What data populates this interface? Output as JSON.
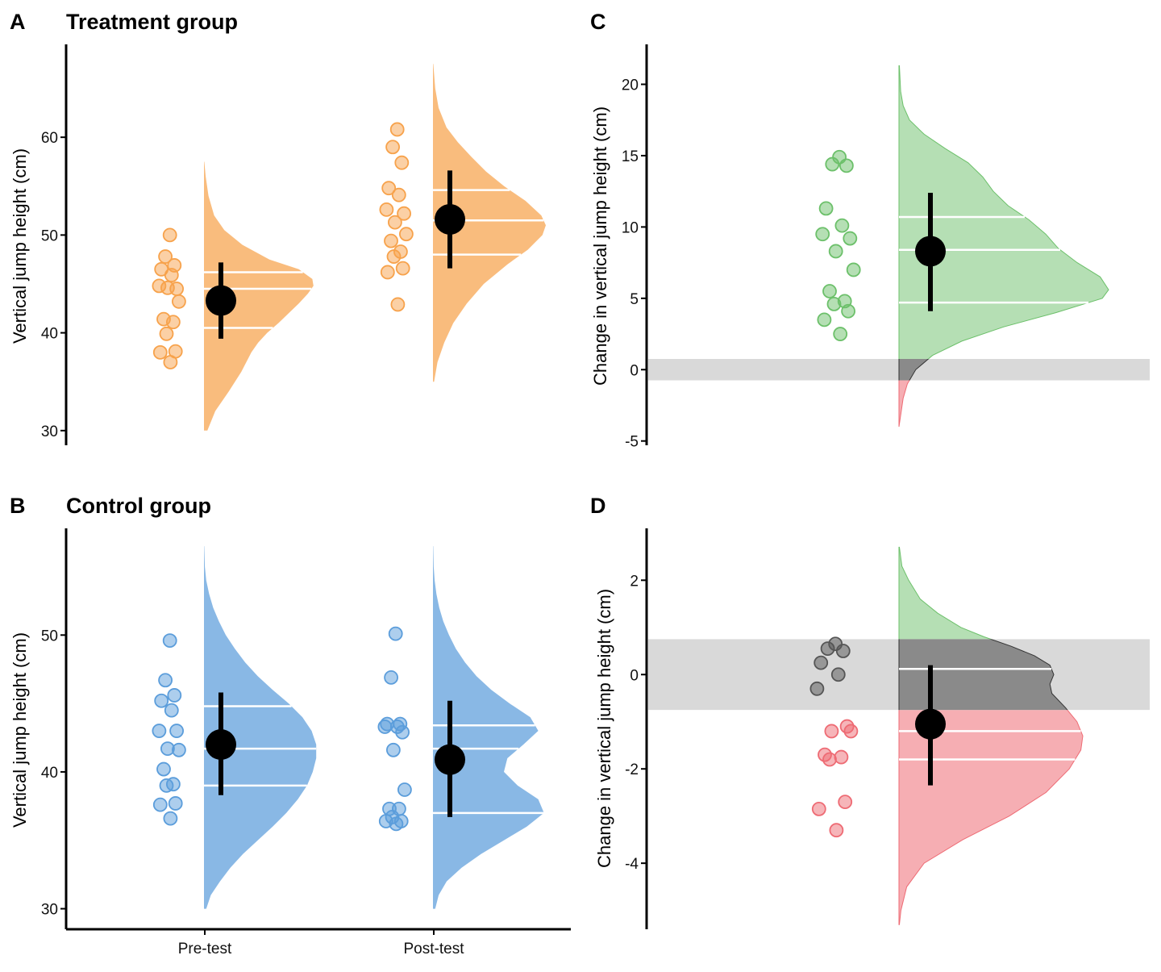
{
  "panels": {
    "A": {
      "letter": "A",
      "title": "Treatment group",
      "ylabel": "Vertical jump height (cm)"
    },
    "B": {
      "letter": "B",
      "title": "Control group",
      "ylabel": "Vertical jump height (cm)"
    },
    "C": {
      "letter": "C",
      "title": "",
      "ylabel": "Change in vertical jump height (cm)"
    },
    "D": {
      "letter": "D",
      "title": "",
      "ylabel": "Change in vertical jump height (cm)"
    }
  },
  "colors": {
    "treatment": "#f7a24b",
    "control": "#5b9ddb",
    "increase": "#6cc06a",
    "decrease": "#ee6b74",
    "equivalence": "#d9d9d9",
    "neutral": "#555555",
    "summary": "#000000"
  },
  "chart_data": [
    {
      "id": "A",
      "type": "raincloud",
      "title": "Treatment group",
      "xlabel": "",
      "ylabel": "Vertical jump height (cm)",
      "ylim": [
        28.5,
        69.5
      ],
      "yticks": [
        30,
        40,
        50,
        60
      ],
      "categories": [
        "Pre-test",
        "Post-test"
      ],
      "show_x_axis": false,
      "series": [
        {
          "category": "Pre-test",
          "points": [
            50.0,
            47.8,
            46.9,
            46.5,
            45.9,
            44.8,
            44.5,
            44.6,
            43.2,
            41.4,
            41.1,
            39.9,
            38.1,
            38.0,
            37.0
          ],
          "mean": 43.3,
          "ci": [
            39.4,
            47.2
          ],
          "quantiles": [
            40.5,
            44.5,
            46.2
          ],
          "density_range": [
            30,
            57.5
          ],
          "density": [
            [
              30,
              0.03
            ],
            [
              32,
              0.1
            ],
            [
              34,
              0.22
            ],
            [
              36,
              0.33
            ],
            [
              38,
              0.42
            ],
            [
              39,
              0.48
            ],
            [
              40,
              0.56
            ],
            [
              41,
              0.66
            ],
            [
              42,
              0.75
            ],
            [
              43,
              0.84
            ],
            [
              44,
              0.92
            ],
            [
              44.8,
              0.97
            ],
            [
              45.5,
              0.96
            ],
            [
              46.5,
              0.84
            ],
            [
              47.5,
              0.58
            ],
            [
              49,
              0.34
            ],
            [
              50.5,
              0.18
            ],
            [
              52,
              0.09
            ],
            [
              54,
              0.04
            ],
            [
              56,
              0.015
            ],
            [
              57.5,
              0.003
            ]
          ]
        },
        {
          "category": "Post-test",
          "points": [
            60.8,
            59.0,
            57.4,
            54.8,
            54.1,
            52.6,
            52.2,
            51.3,
            50.1,
            49.4,
            48.3,
            47.8,
            46.6,
            46.2,
            42.9
          ],
          "mean": 51.6,
          "ci": [
            46.6,
            56.6
          ],
          "quantiles": [
            48.0,
            51.5,
            54.6
          ],
          "density_range": [
            35,
            67.5
          ],
          "density": [
            [
              35,
              0.01
            ],
            [
              37,
              0.04
            ],
            [
              39,
              0.1
            ],
            [
              41,
              0.18
            ],
            [
              43,
              0.3
            ],
            [
              45,
              0.45
            ],
            [
              47,
              0.66
            ],
            [
              48.5,
              0.84
            ],
            [
              50,
              0.97
            ],
            [
              51,
              1.0
            ],
            [
              52,
              0.96
            ],
            [
              53.5,
              0.82
            ],
            [
              55,
              0.63
            ],
            [
              56.5,
              0.47
            ],
            [
              58,
              0.34
            ],
            [
              59.5,
              0.22
            ],
            [
              61,
              0.12
            ],
            [
              63,
              0.05
            ],
            [
              65,
              0.02
            ],
            [
              67.5,
              0.003
            ]
          ]
        }
      ]
    },
    {
      "id": "B",
      "type": "raincloud",
      "title": "Control group",
      "xlabel": "",
      "ylabel": "Vertical jump height (cm)",
      "ylim": [
        28.5,
        57.8
      ],
      "yticks": [
        30,
        40,
        50
      ],
      "categories": [
        "Pre-test",
        "Post-test"
      ],
      "show_x_axis": true,
      "series": [
        {
          "category": "Pre-test",
          "points": [
            49.6,
            46.7,
            45.6,
            45.2,
            44.5,
            43.0,
            43.0,
            41.7,
            41.6,
            40.2,
            39.1,
            39.0,
            37.7,
            37.6,
            36.6
          ],
          "mean": 42.0,
          "ci": [
            38.3,
            45.8
          ],
          "quantiles": [
            39.0,
            41.7,
            44.8
          ],
          "density_range": [
            30,
            56.5
          ],
          "density": [
            [
              30,
              0.02
            ],
            [
              31,
              0.06
            ],
            [
              32,
              0.14
            ],
            [
              33,
              0.23
            ],
            [
              34,
              0.34
            ],
            [
              35,
              0.47
            ],
            [
              36,
              0.6
            ],
            [
              37,
              0.72
            ],
            [
              38,
              0.82
            ],
            [
              39,
              0.9
            ],
            [
              40,
              0.95
            ],
            [
              41,
              0.98
            ],
            [
              42,
              0.98
            ],
            [
              43,
              0.94
            ],
            [
              44,
              0.86
            ],
            [
              45,
              0.74
            ],
            [
              46,
              0.6
            ],
            [
              47,
              0.47
            ],
            [
              48,
              0.36
            ],
            [
              49,
              0.27
            ],
            [
              50,
              0.19
            ],
            [
              51,
              0.13
            ],
            [
              52,
              0.08
            ],
            [
              53,
              0.045
            ],
            [
              54,
              0.02
            ],
            [
              55,
              0.008
            ],
            [
              56.5,
              0.002
            ]
          ]
        },
        {
          "category": "Post-test",
          "points": [
            50.1,
            46.9,
            43.5,
            43.5,
            43.3,
            43.3,
            42.9,
            41.6,
            38.7,
            37.3,
            37.3,
            36.7,
            36.4,
            36.4,
            36.2
          ],
          "mean": 40.9,
          "ci": [
            36.7,
            45.2
          ],
          "quantiles": [
            37.0,
            41.7,
            43.4
          ],
          "density_range": [
            30,
            56.5
          ],
          "density": [
            [
              30,
              0.02
            ],
            [
              31,
              0.05
            ],
            [
              32,
              0.12
            ],
            [
              33,
              0.25
            ],
            [
              34,
              0.42
            ],
            [
              35,
              0.62
            ],
            [
              36,
              0.82
            ],
            [
              37,
              0.97
            ],
            [
              38,
              0.92
            ],
            [
              39,
              0.74
            ],
            [
              40,
              0.62
            ],
            [
              41,
              0.65
            ],
            [
              42,
              0.79
            ],
            [
              43,
              0.92
            ],
            [
              44,
              0.85
            ],
            [
              45,
              0.67
            ],
            [
              46,
              0.51
            ],
            [
              47,
              0.38
            ],
            [
              48,
              0.28
            ],
            [
              49,
              0.2
            ],
            [
              50,
              0.14
            ],
            [
              51,
              0.09
            ],
            [
              52,
              0.055
            ],
            [
              53,
              0.03
            ],
            [
              54,
              0.015
            ],
            [
              55,
              0.006
            ],
            [
              56.5,
              0.002
            ]
          ]
        }
      ]
    },
    {
      "id": "C",
      "type": "raincloud",
      "title": "",
      "xlabel": "",
      "ylabel": "Change in vertical jump height (cm)",
      "ylim": [
        -5.3,
        22.8
      ],
      "yticks": [
        -5,
        0,
        5,
        10,
        15,
        20
      ],
      "equivalence_band": [
        -0.75,
        0.75
      ],
      "points": [
        14.9,
        14.4,
        14.3,
        11.3,
        10.1,
        9.5,
        9.2,
        8.3,
        7.0,
        5.5,
        4.8,
        4.6,
        4.1,
        3.5,
        2.5
      ],
      "mean": 8.3,
      "ci": [
        4.1,
        12.4
      ],
      "quantiles": [
        4.7,
        8.4,
        10.7
      ],
      "density_range": [
        -4,
        21.3
      ],
      "density": [
        [
          -4,
          0.0
        ],
        [
          -3,
          0.01
        ],
        [
          -2,
          0.02
        ],
        [
          -1,
          0.04
        ],
        [
          0,
          0.08
        ],
        [
          1,
          0.16
        ],
        [
          2,
          0.3
        ],
        [
          3,
          0.5
        ],
        [
          4,
          0.75
        ],
        [
          5,
          0.97
        ],
        [
          5.6,
          1.0
        ],
        [
          6.5,
          0.96
        ],
        [
          7.5,
          0.85
        ],
        [
          8.5,
          0.76
        ],
        [
          9.5,
          0.7
        ],
        [
          10.5,
          0.62
        ],
        [
          11.5,
          0.52
        ],
        [
          12.5,
          0.45
        ],
        [
          13.5,
          0.4
        ],
        [
          14.5,
          0.33
        ],
        [
          15.5,
          0.22
        ],
        [
          16.5,
          0.12
        ],
        [
          17.5,
          0.05
        ],
        [
          18.5,
          0.02
        ],
        [
          19.5,
          0.008
        ],
        [
          21.3,
          0.002
        ]
      ]
    },
    {
      "id": "D",
      "type": "raincloud",
      "title": "",
      "xlabel": "",
      "ylabel": "Change in vertical jump height (cm)",
      "ylim": [
        -5.4,
        3.1
      ],
      "yticks": [
        -4,
        -2,
        0,
        2
      ],
      "equivalence_band": [
        -0.75,
        0.75
      ],
      "points": [
        0.65,
        0.55,
        0.5,
        0.25,
        0.0,
        -0.3,
        -1.1,
        -1.2,
        -1.2,
        -1.7,
        -1.75,
        -1.8,
        -2.7,
        -2.85,
        -3.3
      ],
      "mean": -1.05,
      "ci": [
        -2.35,
        0.2
      ],
      "quantiles": [
        -1.8,
        -1.2,
        0.12
      ],
      "density_range": [
        -5.3,
        2.7
      ],
      "density": [
        [
          -5.3,
          0.002
        ],
        [
          -5.0,
          0.01
        ],
        [
          -4.5,
          0.04
        ],
        [
          -4.0,
          0.13
        ],
        [
          -3.5,
          0.33
        ],
        [
          -3.0,
          0.57
        ],
        [
          -2.5,
          0.76
        ],
        [
          -2.0,
          0.88
        ],
        [
          -1.6,
          0.94
        ],
        [
          -1.3,
          0.95
        ],
        [
          -1.0,
          0.92
        ],
        [
          -0.7,
          0.86
        ],
        [
          -0.4,
          0.79
        ],
        [
          -0.2,
          0.78
        ],
        [
          0.0,
          0.8
        ],
        [
          0.2,
          0.78
        ],
        [
          0.4,
          0.7
        ],
        [
          0.6,
          0.58
        ],
        [
          0.8,
          0.44
        ],
        [
          1.0,
          0.32
        ],
        [
          1.3,
          0.2
        ],
        [
          1.6,
          0.11
        ],
        [
          2.0,
          0.05
        ],
        [
          2.3,
          0.015
        ],
        [
          2.7,
          0.002
        ]
      ]
    }
  ]
}
